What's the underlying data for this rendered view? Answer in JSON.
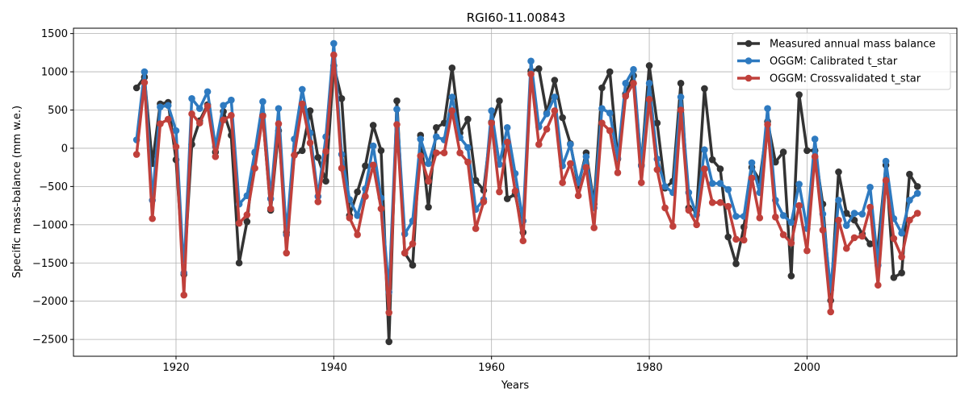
{
  "chart_data": {
    "type": "line",
    "title": "RGI60-11.00843",
    "xlabel": "Years",
    "ylabel": "Specific mass-balance (mm w.e.)",
    "xlim": [
      1907,
      2019
    ],
    "ylim": [
      -2720,
      1570
    ],
    "xticks": [
      1920,
      1940,
      1960,
      1980,
      2000
    ],
    "yticks": [
      -2500,
      -2000,
      -1500,
      -1000,
      -500,
      0,
      500,
      1000,
      1500
    ],
    "grid": true,
    "legend_position": "top-right",
    "x": [
      1915,
      1916,
      1917,
      1918,
      1919,
      1920,
      1921,
      1922,
      1923,
      1924,
      1925,
      1926,
      1927,
      1928,
      1929,
      1930,
      1931,
      1932,
      1933,
      1934,
      1935,
      1936,
      1937,
      1938,
      1939,
      1940,
      1941,
      1942,
      1943,
      1944,
      1945,
      1946,
      1947,
      1948,
      1949,
      1950,
      1951,
      1952,
      1953,
      1954,
      1955,
      1956,
      1957,
      1958,
      1959,
      1960,
      1961,
      1962,
      1963,
      1964,
      1965,
      1966,
      1967,
      1968,
      1969,
      1970,
      1971,
      1972,
      1973,
      1974,
      1975,
      1976,
      1977,
      1978,
      1979,
      1980,
      1981,
      1982,
      1983,
      1984,
      1985,
      1986,
      1987,
      1988,
      1989,
      1990,
      1991,
      1992,
      1993,
      1994,
      1995,
      1996,
      1997,
      1998,
      1999,
      2000,
      2001,
      2002,
      2003,
      2004,
      2005,
      2006,
      2007,
      2008,
      2009,
      2010,
      2011,
      2012,
      2013,
      2014
    ],
    "series": [
      {
        "name": "Measured annual mass balance",
        "color": "#333333",
        "values": [
          790,
          930,
          -200,
          580,
          600,
          -150,
          -1650,
          50,
          360,
          570,
          -50,
          480,
          170,
          -1500,
          -960,
          -60,
          430,
          -810,
          230,
          -1100,
          -90,
          -30,
          490,
          -120,
          -430,
          1080,
          650,
          -880,
          -570,
          -230,
          300,
          -30,
          -2530,
          620,
          -1370,
          -1530,
          170,
          -770,
          270,
          330,
          1050,
          200,
          380,
          -420,
          -550,
          340,
          620,
          -660,
          -600,
          -1100,
          1010,
          1040,
          460,
          890,
          400,
          60,
          -490,
          -60,
          -730,
          790,
          1000,
          -140,
          710,
          950,
          -220,
          1080,
          330,
          -520,
          -430,
          850,
          -780,
          -820,
          780,
          -150,
          -270,
          -1160,
          -1510,
          -1030,
          -250,
          -420,
          350,
          -180,
          -50,
          -1670,
          700,
          -30,
          -30,
          -730,
          -1990,
          -310,
          -850,
          -940,
          -1120,
          -1250,
          -1290,
          -220,
          -1690,
          -1630,
          -340,
          -500
        ]
      },
      {
        "name": "OGGM: Calibrated t_star",
        "color": "#2e7ac0",
        "values": [
          110,
          1000,
          -680,
          540,
          560,
          230,
          -1630,
          650,
          520,
          740,
          20,
          560,
          630,
          -730,
          -620,
          -50,
          610,
          -660,
          520,
          -1130,
          120,
          770,
          200,
          -630,
          150,
          1370,
          -80,
          -670,
          -880,
          -530,
          30,
          -650,
          -1880,
          510,
          -1120,
          -950,
          120,
          -200,
          150,
          110,
          670,
          140,
          10,
          -800,
          -670,
          490,
          -210,
          270,
          -330,
          -950,
          1140,
          280,
          450,
          670,
          -230,
          50,
          -450,
          -110,
          -780,
          520,
          460,
          -130,
          850,
          1030,
          -230,
          850,
          -140,
          -500,
          -580,
          670,
          -580,
          -870,
          -20,
          -460,
          -460,
          -540,
          -890,
          -890,
          -190,
          -580,
          520,
          -680,
          -880,
          -970,
          -470,
          -1050,
          120,
          -860,
          -1850,
          -680,
          -1010,
          -850,
          -860,
          -510,
          -1530,
          -170,
          -920,
          -1110,
          -680,
          -590
        ]
      },
      {
        "name": "OGGM: Crossvalidated t_star",
        "color": "#c0403b",
        "values": [
          -80,
          860,
          -920,
          320,
          380,
          20,
          -1920,
          450,
          330,
          550,
          -110,
          370,
          430,
          -980,
          -870,
          -260,
          420,
          -790,
          320,
          -1370,
          -90,
          580,
          70,
          -700,
          -40,
          1220,
          -260,
          -910,
          -1130,
          -630,
          -220,
          -790,
          -2150,
          310,
          -1370,
          -1250,
          -100,
          -430,
          -60,
          -60,
          490,
          -60,
          -180,
          -1050,
          -700,
          330,
          -570,
          80,
          -560,
          -1210,
          970,
          50,
          250,
          490,
          -450,
          -200,
          -620,
          -250,
          -1040,
          330,
          230,
          -320,
          680,
          850,
          -450,
          640,
          -280,
          -780,
          -1020,
          500,
          -810,
          -1000,
          -270,
          -710,
          -710,
          -760,
          -1190,
          -1200,
          -390,
          -910,
          310,
          -900,
          -1130,
          -1240,
          -750,
          -1340,
          -110,
          -1070,
          -2140,
          -940,
          -1310,
          -1170,
          -1150,
          -770,
          -1790,
          -420,
          -1180,
          -1420,
          -940,
          -850
        ]
      }
    ]
  }
}
